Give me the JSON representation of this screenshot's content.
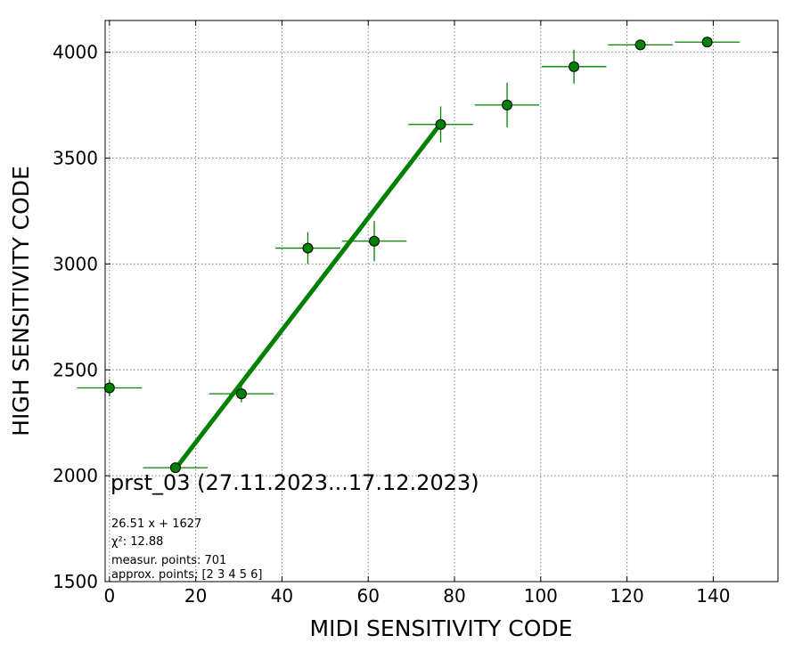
{
  "chart_data": {
    "type": "scatter",
    "xlabel": "MIDI SENSITIVITY CODE",
    "ylabel": "HIGH SENSITIVITY CODE",
    "xlim": [
      -1,
      155
    ],
    "ylim": [
      1500,
      4150
    ],
    "xticks": [
      0,
      20,
      40,
      60,
      80,
      100,
      120,
      140
    ],
    "yticks": [
      1500,
      2000,
      2500,
      3000,
      3500,
      4000
    ],
    "grid": true,
    "marker_color": "#008000",
    "fit_color": "#008000",
    "points": [
      {
        "x": 0,
        "y": 2415,
        "xerr": 7.5,
        "yerr": 40
      },
      {
        "x": 15.3,
        "y": 2038,
        "xerr": 7.5,
        "yerr": 15
      },
      {
        "x": 30.6,
        "y": 2387,
        "xerr": 7.5,
        "yerr": 40
      },
      {
        "x": 46.0,
        "y": 3075,
        "xerr": 7.5,
        "yerr": 75
      },
      {
        "x": 61.4,
        "y": 3108,
        "xerr": 7.5,
        "yerr": 95
      },
      {
        "x": 76.8,
        "y": 3659,
        "xerr": 7.5,
        "yerr": 85
      },
      {
        "x": 92.2,
        "y": 3751,
        "xerr": 7.5,
        "yerr": 105
      },
      {
        "x": 107.7,
        "y": 3932,
        "xerr": 7.5,
        "yerr": 80
      },
      {
        "x": 123.1,
        "y": 4035,
        "xerr": 7.5,
        "yerr": 20
      },
      {
        "x": 138.6,
        "y": 4048,
        "xerr": 7.5,
        "yerr": 10
      }
    ],
    "fit": {
      "slope": 26.51,
      "intercept": 1627,
      "x_from": 15.3,
      "x_to": 76.8
    },
    "annotations": {
      "title": "prst_03 (27.11.2023...17.12.2023)",
      "fit_eq": "26.51 x + 1627",
      "chi2": "χ²: 12.88",
      "measur": "measur. points: 701",
      "approx": "approx. points: [2 3 4 5 6]"
    }
  }
}
